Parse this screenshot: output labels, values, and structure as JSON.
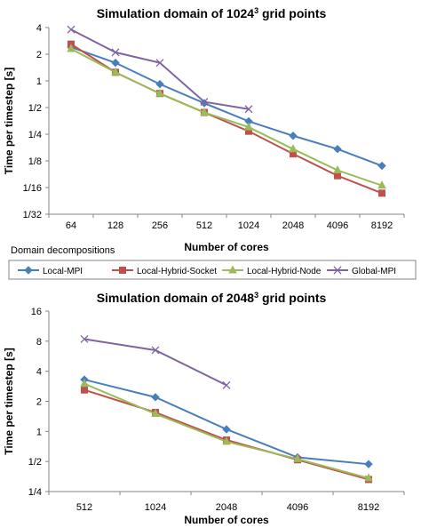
{
  "chart_data": [
    {
      "type": "line",
      "title_main": "Simulation domain of 1024",
      "title_sup": "3",
      "title_tail": " grid points",
      "xlabel": "Number of cores",
      "ylabel": "Time per timestep [s]",
      "x_scale": "categorical",
      "y_scale": "log2",
      "categories": [
        "64",
        "128",
        "256",
        "512",
        "1024",
        "2048",
        "4096",
        "8192"
      ],
      "y_ticks": [
        {
          "value": 4,
          "label": "4"
        },
        {
          "value": 2,
          "label": "2"
        },
        {
          "value": 1,
          "label": "1"
        },
        {
          "value": 0.5,
          "label": "1/2"
        },
        {
          "value": 0.25,
          "label": "1/4"
        },
        {
          "value": 0.125,
          "label": "1/8"
        },
        {
          "value": 0.0625,
          "label": "1/16"
        },
        {
          "value": 0.03125,
          "label": "1/32"
        }
      ],
      "ylim": [
        0.03125,
        4
      ],
      "grid": false,
      "note": "Domain  decompositions",
      "series": [
        {
          "name": "Local-MPI",
          "values": [
            2.4,
            1.6,
            0.92,
            0.56,
            0.35,
            0.24,
            0.17,
            0.11
          ]
        },
        {
          "name": "Local-Hybrid-Socket",
          "values": [
            2.6,
            1.25,
            0.72,
            0.44,
            0.27,
            0.15,
            0.085,
            0.054
          ]
        },
        {
          "name": "Local-Hybrid-Node",
          "values": [
            2.3,
            1.25,
            0.72,
            0.44,
            0.3,
            0.17,
            0.098,
            0.066
          ]
        },
        {
          "name": "Global-MPI",
          "values": [
            3.8,
            2.1,
            1.6,
            0.58,
            0.48,
            null,
            null,
            null
          ]
        }
      ]
    },
    {
      "type": "line",
      "title_main": "Simulation domain of 2048",
      "title_sup": "3",
      "title_tail": " grid points",
      "xlabel": "Number of cores",
      "ylabel": "Time per timestep [s]",
      "x_scale": "categorical",
      "y_scale": "log2",
      "categories": [
        "512",
        "1024",
        "2048",
        "4096",
        "8192"
      ],
      "y_ticks": [
        {
          "value": 16,
          "label": "16"
        },
        {
          "value": 8,
          "label": "8"
        },
        {
          "value": 4,
          "label": "4"
        },
        {
          "value": 2,
          "label": "2"
        },
        {
          "value": 1,
          "label": "1"
        },
        {
          "value": 0.5,
          "label": "1/2"
        },
        {
          "value": 0.25,
          "label": "1/4"
        }
      ],
      "ylim": [
        0.25,
        16
      ],
      "grid": false,
      "series": [
        {
          "name": "Local-MPI",
          "values": [
            3.3,
            2.2,
            1.05,
            0.55,
            0.47
          ]
        },
        {
          "name": "Local-Hybrid-Socket",
          "values": [
            2.6,
            1.55,
            0.82,
            0.52,
            0.33
          ]
        },
        {
          "name": "Local-Hybrid-Node",
          "values": [
            3.0,
            1.5,
            0.79,
            0.53,
            0.34
          ]
        },
        {
          "name": "Global-MPI",
          "values": [
            8.4,
            6.5,
            2.9,
            null,
            null
          ]
        }
      ]
    }
  ],
  "legend": {
    "placement": "between charts",
    "items": [
      {
        "name": "Local-MPI",
        "color": "#4A7EBB",
        "marker": "diamond"
      },
      {
        "name": "Local-Hybrid-Socket",
        "color": "#C0504D",
        "marker": "square"
      },
      {
        "name": "Local-Hybrid-Node",
        "color": "#9BBB59",
        "marker": "triangle"
      },
      {
        "name": "Global-MPI",
        "color": "#8064A2",
        "marker": "x"
      }
    ]
  }
}
